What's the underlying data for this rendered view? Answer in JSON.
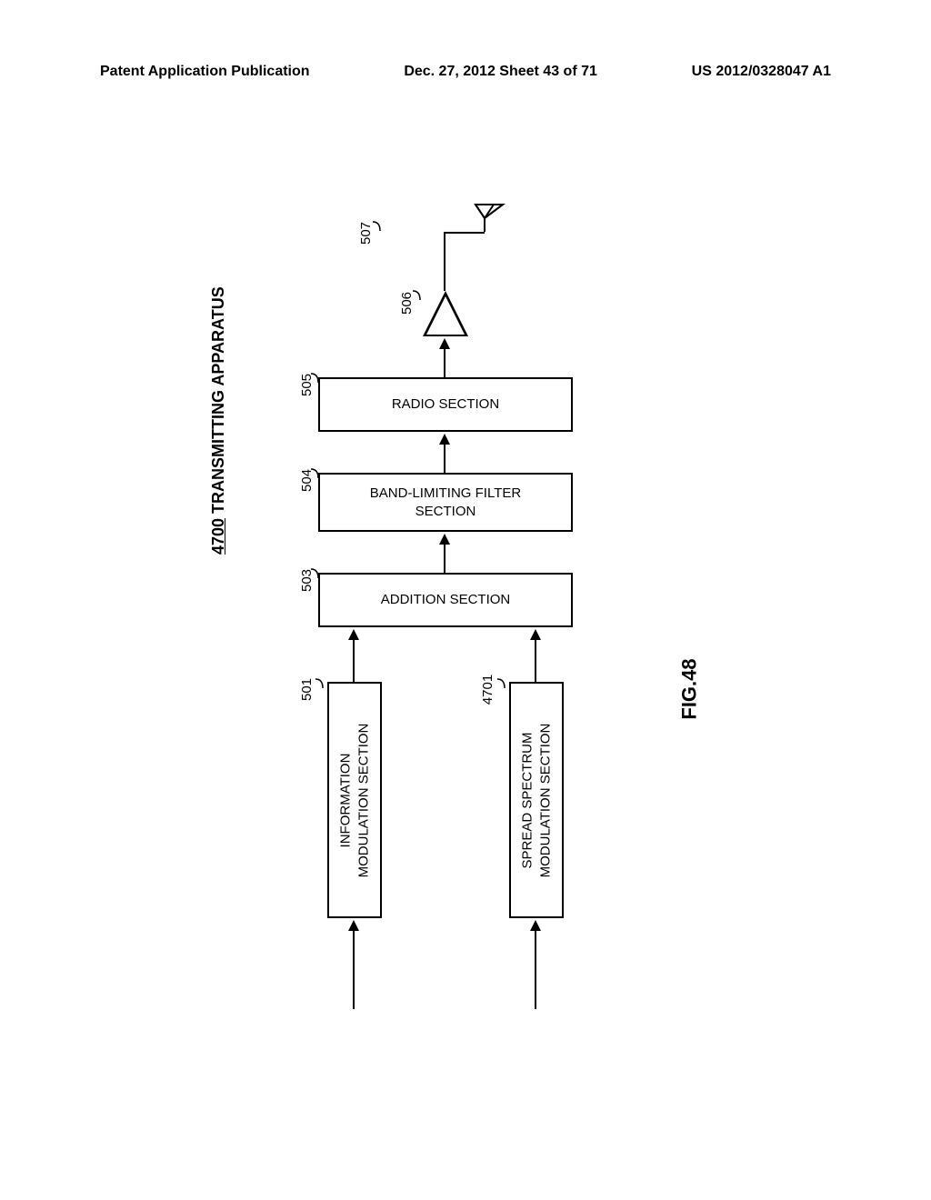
{
  "header": {
    "left": "Patent Application Publication",
    "center": "Dec. 27, 2012  Sheet 43 of 71",
    "right": "US 2012/0328047 A1"
  },
  "diagram": {
    "title_number": "4700",
    "title_text": "TRANSMITTING APPARATUS",
    "blocks": {
      "info_mod": {
        "ref": "501",
        "label": "INFORMATION\nMODULATION SECTION"
      },
      "spread_mod": {
        "ref": "4701",
        "label": "SPREAD SPECTRUM\nMODULATION SECTION"
      },
      "addition": {
        "ref": "503",
        "label": "ADDITION SECTION"
      },
      "filter": {
        "ref": "504",
        "label": "BAND-LIMITING FILTER\nSECTION"
      },
      "radio": {
        "ref": "505",
        "label": "RADIO SECTION"
      },
      "amplifier": {
        "ref": "506"
      },
      "antenna": {
        "ref": "507"
      }
    },
    "figure_label": "FIG.48",
    "colors": {
      "stroke": "#000000",
      "background": "#ffffff"
    }
  }
}
